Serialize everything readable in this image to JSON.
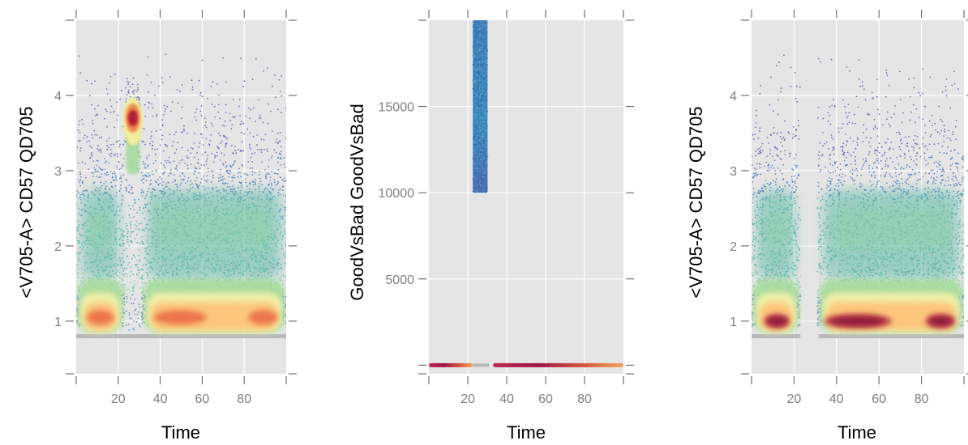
{
  "chart_data": [
    {
      "type": "scatter",
      "xlabel": "Time",
      "ylabel": "<V705-A> CD57 QD705",
      "xlim": [
        0,
        100
      ],
      "ylim": [
        0.3,
        5.0
      ],
      "x_ticks": [
        20,
        40,
        60,
        80
      ],
      "y_ticks": [
        1,
        2,
        3,
        4
      ],
      "x_tick_labels": [
        "20",
        "40",
        "60",
        "80"
      ],
      "y_tick_labels": [
        "1",
        "2",
        "3",
        "4"
      ],
      "grid": true,
      "density_colored": true,
      "gap_region": [
        23,
        31
      ],
      "gap_region_high_cluster": {
        "x": 27,
        "y": 3.7
      },
      "main_cluster_y": 1.05,
      "secondary_cluster_y": 2.2
    },
    {
      "type": "scatter",
      "xlabel": "Time",
      "ylabel": "GoodVsBad GoodVsBad",
      "xlim": [
        0,
        100
      ],
      "ylim": [
        -500,
        20000
      ],
      "x_ticks": [
        20,
        40,
        60,
        80
      ],
      "y_ticks": [
        0,
        5000,
        10000,
        15000
      ],
      "x_tick_labels": [
        "20",
        "40",
        "60",
        "80"
      ],
      "y_tick_labels": [
        "",
        "5000",
        "10000",
        "15000"
      ],
      "grid": true,
      "density_colored": true,
      "bad_band": {
        "x_range": [
          23,
          31
        ],
        "y_range": [
          10000,
          20000
        ]
      },
      "good_band": {
        "x_range": [
          0,
          100
        ],
        "y": 0
      }
    },
    {
      "type": "scatter",
      "xlabel": "Time",
      "ylabel": "<V705-A> CD57 QD705",
      "xlim": [
        0,
        100
      ],
      "ylim": [
        0.3,
        5.0
      ],
      "x_ticks": [
        20,
        40,
        60,
        80
      ],
      "y_ticks": [
        1,
        2,
        3,
        4
      ],
      "x_tick_labels": [
        "20",
        "40",
        "60",
        "80"
      ],
      "y_tick_labels": [
        "1",
        "2",
        "3",
        "4"
      ],
      "grid": true,
      "density_colored": true,
      "removed_region": [
        23,
        31
      ],
      "main_cluster_y": 1.0,
      "secondary_cluster_y": 2.2
    }
  ]
}
